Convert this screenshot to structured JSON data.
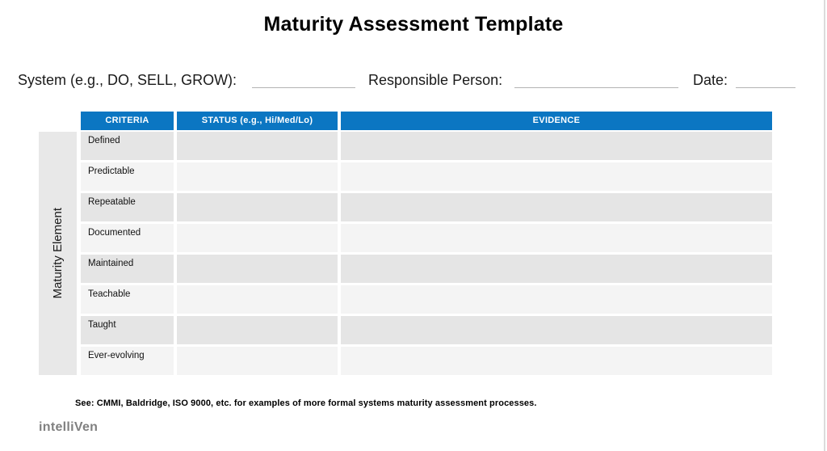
{
  "page": {
    "title": "Maturity Assessment Template"
  },
  "form": {
    "system_label": "System (e.g., DO, SELL, GROW):",
    "system_value": "",
    "responsible_label": "Responsible Person:",
    "responsible_value": "",
    "date_label": "Date:",
    "date_value": ""
  },
  "table": {
    "sidebar_label": "Maturity Element",
    "columns": [
      "CRITERIA",
      "STATUS (e.g., Hi/Med/Lo)",
      "EVIDENCE"
    ],
    "rows": [
      {
        "criteria": "Defined",
        "status": "",
        "evidence": ""
      },
      {
        "criteria": "Predictable",
        "status": "",
        "evidence": ""
      },
      {
        "criteria": "Repeatable",
        "status": "",
        "evidence": ""
      },
      {
        "criteria": "Documented",
        "status": "",
        "evidence": ""
      },
      {
        "criteria": "Maintained",
        "status": "",
        "evidence": ""
      },
      {
        "criteria": "Teachable",
        "status": "",
        "evidence": ""
      },
      {
        "criteria": "Taught",
        "status": "",
        "evidence": ""
      },
      {
        "criteria": "Ever-evolving",
        "status": "",
        "evidence": ""
      }
    ]
  },
  "footer": {
    "note": "See: CMMI, Baldridge, ISO 9000, etc. for examples of more formal systems maturity assessment processes.",
    "logo": "intelliVen"
  },
  "colors": {
    "header_blue": "#0b76c2",
    "row_stripe_dark": "#e5e5e5",
    "row_stripe_light": "#f4f4f4",
    "sidebar_gray": "#e8e8e8",
    "blank_line_gray": "#b3b3b3",
    "logo_gray": "#808080"
  }
}
